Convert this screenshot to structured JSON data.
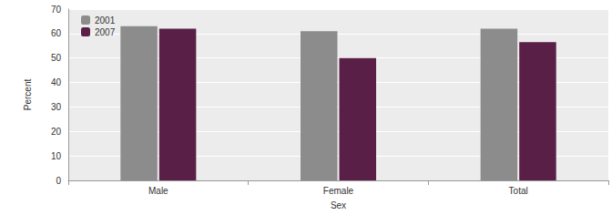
{
  "chart_data": {
    "type": "bar",
    "categories": [
      "Male",
      "Female",
      "Total"
    ],
    "series": [
      {
        "name": "2001",
        "color": "#8c8c8c",
        "values": [
          63,
          61,
          62
        ]
      },
      {
        "name": "2007",
        "color": "#5a1f46",
        "values": [
          62,
          50,
          56.5
        ]
      }
    ],
    "x_label": "Sex",
    "y_label": "Percent",
    "ylim": [
      0,
      70
    ],
    "yticks": [
      0,
      10,
      20,
      30,
      40,
      50,
      60,
      70
    ],
    "grid": true,
    "legend": "top-left"
  }
}
